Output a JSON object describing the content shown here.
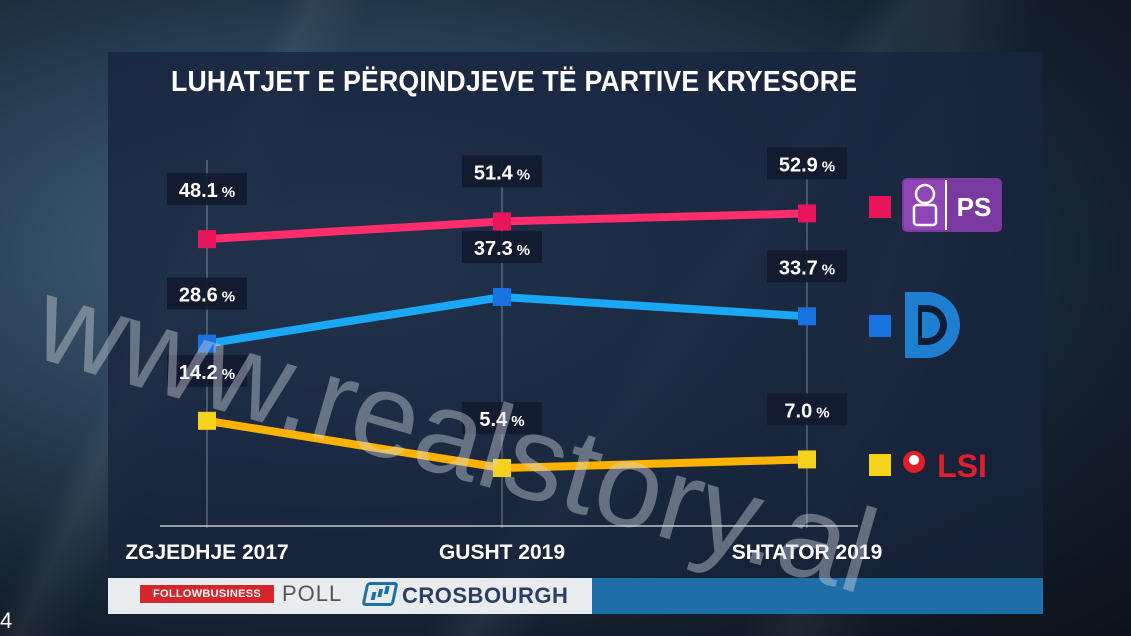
{
  "title": "LUHATJET E PËRQINDJEVE TË PARTIVE KRYESORE",
  "chart_data": {
    "type": "line",
    "title": "LUHATJET E PËRQINDJEVE TË PARTIVE KRYESORE",
    "categories": [
      "ZGJEDHJE 2017",
      "GUSHT 2019",
      "SHTATOR 2019"
    ],
    "series": [
      {
        "name": "PS",
        "values": [
          48.1,
          51.4,
          52.9
        ],
        "labels": [
          "48.1",
          "51.4",
          "52.9"
        ],
        "color": "#ff2d6b",
        "marker_color": "#e8155c"
      },
      {
        "name": "",
        "values": [
          28.6,
          37.3,
          33.7
        ],
        "labels": [
          "28.6",
          "37.3",
          "33.7"
        ],
        "color": "#1aa7f5",
        "marker_color": "#1872e0"
      },
      {
        "name": "LSI",
        "values": [
          14.2,
          5.4,
          7.0
        ],
        "labels": [
          "14.2",
          "5.4",
          "7.0"
        ],
        "color": "#ffb300",
        "marker_color": "#f5d31b"
      }
    ],
    "value_suffix": "%",
    "grid": false,
    "legend_position": "right"
  },
  "legend": {
    "ps_logo_text": "PS",
    "lsi_logo_text": "LSI",
    "pd_icon": "pd-logo-icon",
    "ps_icon": "rose-fist-icon",
    "lsi_icon": "rose-icon"
  },
  "footer": {
    "followbusiness": "FOLLOWBUSINESS",
    "poll": "POLL",
    "crosbourgh": "CROSBOURGH",
    "crosbourgh_icon": "chart-box-icon"
  },
  "watermark": "www.realstory.al",
  "corner_number": "4"
}
